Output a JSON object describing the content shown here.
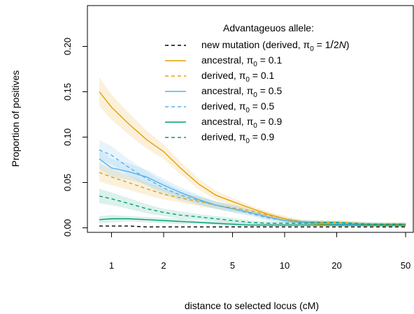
{
  "chart_data": {
    "type": "line",
    "title": "",
    "xlabel": "distance to selected locus (cM)",
    "ylabel": "Proportion of positives",
    "x_scale": "log",
    "xlim": [
      0.85,
      50
    ],
    "ylim": [
      -0.005,
      0.245
    ],
    "x_ticks": [
      1,
      2,
      5,
      10,
      20,
      50
    ],
    "x_tick_labels": [
      "1",
      "2",
      "5",
      "10",
      "20",
      "50"
    ],
    "y_ticks": [
      0.0,
      0.05,
      0.1,
      0.15,
      0.2
    ],
    "y_tick_labels": [
      "0.00",
      "0.05",
      "0.10",
      "0.15",
      "0.20"
    ],
    "grid": false,
    "legend": {
      "position": "top-right",
      "title": "Advantageuos allele:",
      "entries": [
        {
          "text": "new mutation (derived, π",
          "sub": "0",
          "eq": " = 1",
          "frac": "/",
          "tail": "2",
          "italic": "N",
          "close": ")"
        },
        {
          "text": "ancestral, π",
          "sub": "0",
          "eq": " = 0.1"
        },
        {
          "text": "derived, π",
          "sub": "0",
          "eq": " = 0.1"
        },
        {
          "text": "ancestral, π",
          "sub": "0",
          "eq": " = 0.5"
        },
        {
          "text": "derived, π",
          "sub": "0",
          "eq": " = 0.5"
        },
        {
          "text": "ancestral, π",
          "sub": "0",
          "eq": " = 0.9"
        },
        {
          "text": "derived, π",
          "sub": "0",
          "eq": " = 0.9"
        }
      ]
    },
    "x": [
      0.85,
      1,
      1.25,
      1.6,
      2,
      2.5,
      3.2,
      4,
      5,
      6.3,
      8,
      10,
      12.5,
      16,
      20,
      25,
      32,
      40,
      50
    ],
    "series": [
      {
        "style": "dashed",
        "color": "#000000",
        "band": false,
        "values": [
          0.002,
          0.002,
          0.002,
          0.001,
          0.001,
          0.001,
          0.001,
          0.001,
          0.001,
          0.001,
          0.001,
          0.001,
          0.001,
          0.001,
          0.001,
          0.001,
          0.001,
          0.001,
          0.001
        ]
      },
      {
        "style": "solid",
        "color": "#E69F00",
        "band": true,
        "values": [
          0.15,
          0.133,
          0.115,
          0.097,
          0.084,
          0.066,
          0.048,
          0.036,
          0.029,
          0.022,
          0.015,
          0.01,
          0.006,
          0.004,
          0.003,
          0.003,
          0.003,
          0.003,
          0.003
        ],
        "band_half_width": [
          0.016,
          0.014,
          0.012,
          0.01,
          0.008,
          0.007,
          0.006,
          0.005,
          0.004,
          0.003,
          0.003,
          0.002,
          0.002,
          0.002,
          0.002,
          0.002,
          0.002,
          0.002,
          0.002
        ]
      },
      {
        "style": "dashed",
        "color": "#E69F00",
        "band": true,
        "values": [
          0.061,
          0.056,
          0.05,
          0.043,
          0.037,
          0.033,
          0.029,
          0.025,
          0.022,
          0.019,
          0.014,
          0.01,
          0.007,
          0.006,
          0.006,
          0.005,
          0.004,
          0.004,
          0.004
        ],
        "band_half_width": [
          0.01,
          0.009,
          0.008,
          0.007,
          0.006,
          0.005,
          0.005,
          0.004,
          0.004,
          0.003,
          0.003,
          0.003,
          0.002,
          0.002,
          0.002,
          0.002,
          0.002,
          0.002,
          0.002
        ]
      },
      {
        "style": "solid",
        "color": "#56B4E9",
        "band": true,
        "values": [
          0.076,
          0.066,
          0.062,
          0.056,
          0.047,
          0.039,
          0.031,
          0.025,
          0.021,
          0.017,
          0.012,
          0.008,
          0.006,
          0.005,
          0.004,
          0.004,
          0.003,
          0.003,
          0.003
        ],
        "band_half_width": [
          0.011,
          0.01,
          0.009,
          0.008,
          0.007,
          0.006,
          0.005,
          0.004,
          0.004,
          0.003,
          0.003,
          0.002,
          0.002,
          0.002,
          0.002,
          0.002,
          0.002,
          0.002,
          0.002
        ]
      },
      {
        "style": "dashed",
        "color": "#56B4E9",
        "band": true,
        "values": [
          0.086,
          0.08,
          0.067,
          0.054,
          0.044,
          0.036,
          0.03,
          0.025,
          0.021,
          0.016,
          0.011,
          0.008,
          0.007,
          0.006,
          0.005,
          0.004,
          0.004,
          0.003,
          0.003
        ],
        "band_half_width": [
          0.011,
          0.01,
          0.009,
          0.008,
          0.007,
          0.006,
          0.005,
          0.004,
          0.004,
          0.003,
          0.003,
          0.002,
          0.002,
          0.002,
          0.002,
          0.002,
          0.002,
          0.002,
          0.002
        ]
      },
      {
        "style": "solid",
        "color": "#009E73",
        "band": true,
        "values": [
          0.009,
          0.01,
          0.01,
          0.009,
          0.008,
          0.007,
          0.006,
          0.005,
          0.004,
          0.003,
          0.003,
          0.003,
          0.003,
          0.003,
          0.003,
          0.003,
          0.003,
          0.003,
          0.003
        ],
        "band_half_width": [
          0.004,
          0.004,
          0.003,
          0.003,
          0.003,
          0.003,
          0.002,
          0.002,
          0.002,
          0.002,
          0.002,
          0.002,
          0.002,
          0.002,
          0.002,
          0.002,
          0.002,
          0.002,
          0.002
        ]
      },
      {
        "style": "dashed",
        "color": "#009E73",
        "band": true,
        "values": [
          0.035,
          0.032,
          0.027,
          0.021,
          0.017,
          0.014,
          0.012,
          0.01,
          0.008,
          0.006,
          0.005,
          0.005,
          0.005,
          0.006,
          0.006,
          0.005,
          0.004,
          0.004,
          0.004
        ],
        "band_half_width": [
          0.008,
          0.007,
          0.006,
          0.005,
          0.004,
          0.004,
          0.003,
          0.003,
          0.003,
          0.002,
          0.002,
          0.002,
          0.002,
          0.002,
          0.002,
          0.002,
          0.002,
          0.002,
          0.002
        ]
      }
    ]
  }
}
